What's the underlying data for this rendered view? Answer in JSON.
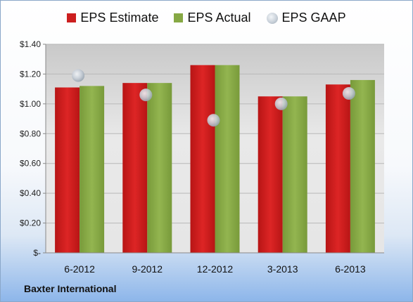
{
  "chart_data": {
    "type": "bar",
    "categories": [
      "6-2012",
      "9-2012",
      "12-2012",
      "3-2013",
      "6-2013"
    ],
    "series": [
      {
        "name": "EPS Estimate",
        "type": "bar",
        "color": "#cc1f1f",
        "values": [
          1.11,
          1.14,
          1.26,
          1.05,
          1.13
        ]
      },
      {
        "name": "EPS Actual",
        "type": "bar",
        "color": "#86a844",
        "values": [
          1.12,
          1.14,
          1.26,
          1.05,
          1.16
        ]
      },
      {
        "name": "EPS GAAP",
        "type": "scatter",
        "color": "#b9c2cc",
        "values": [
          1.19,
          1.06,
          0.89,
          1.0,
          1.07
        ]
      }
    ],
    "ylim": [
      0,
      1.4
    ],
    "yticks": [
      {
        "value": 0,
        "label": "$-"
      },
      {
        "value": 0.2,
        "label": "$0.20"
      },
      {
        "value": 0.4,
        "label": "$0.40"
      },
      {
        "value": 0.6,
        "label": "$0.60"
      },
      {
        "value": 0.8,
        "label": "$0.80"
      },
      {
        "value": 1.0,
        "label": "$1.00"
      },
      {
        "value": 1.2,
        "label": "$1.20"
      },
      {
        "value": 1.4,
        "label": "$1.40"
      }
    ],
    "grid": true,
    "legend_position": "top-center"
  },
  "company_label": "Baxter International"
}
